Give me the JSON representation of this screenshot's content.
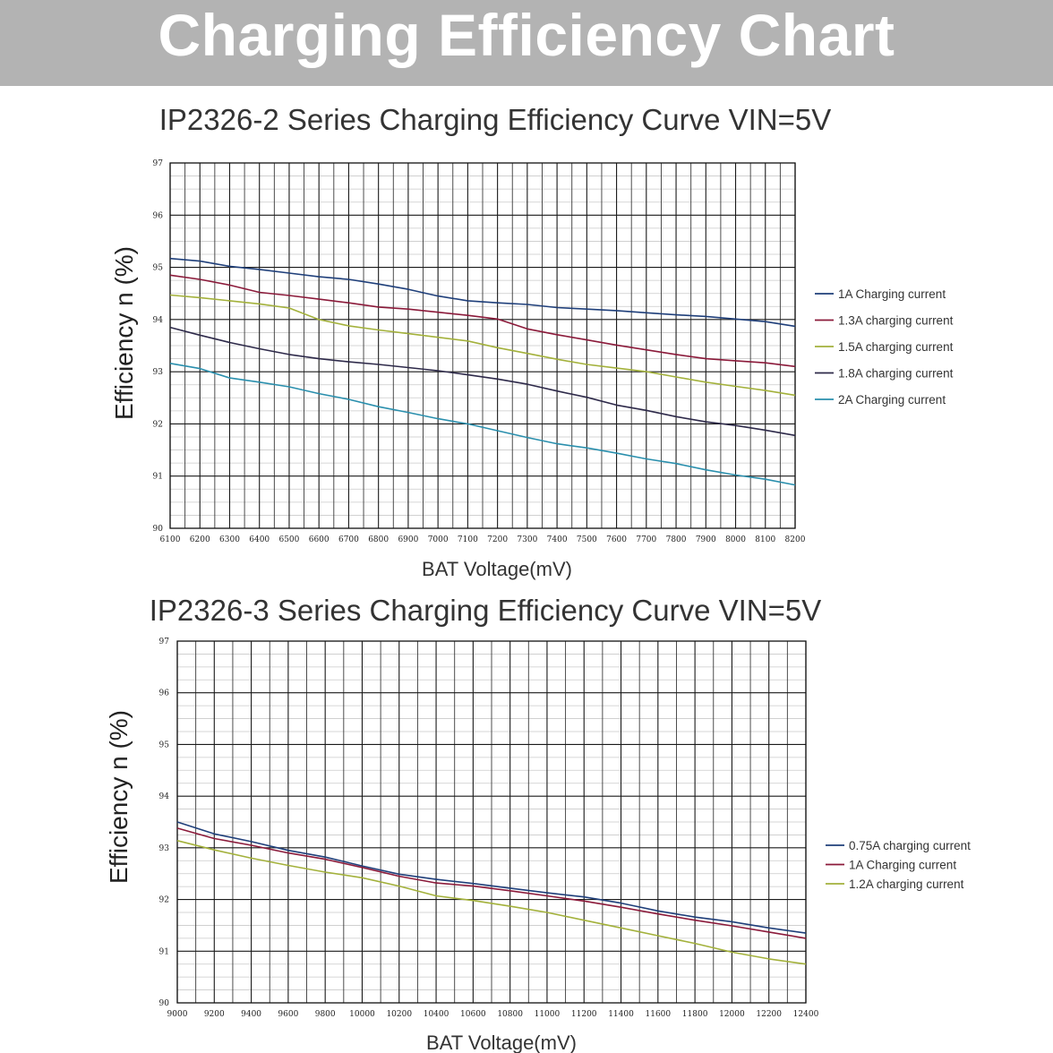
{
  "banner": {
    "title": "Charging Efficiency Chart"
  },
  "chart_data": [
    {
      "type": "line",
      "title": "IP2326-2 Series Charging Efficiency Curve VIN=5V",
      "xlabel": "BAT Voltage(mV)",
      "ylabel": "Efficiency n (%)",
      "xlim": [
        6100,
        8200
      ],
      "ylim": [
        90,
        97
      ],
      "grid": true,
      "legend_position": "right",
      "x_ticks": [
        "6100",
        "6200",
        "6300",
        "6400",
        "6500",
        "6600",
        "6700",
        "6800",
        "6900",
        "7000",
        "7100",
        "7200",
        "7300",
        "7400",
        "7500",
        "7600",
        "7700",
        "7800",
        "7900",
        "8000",
        "8100",
        "8200"
      ],
      "y_ticks": [
        "90",
        "91",
        "92",
        "93",
        "94",
        "95",
        "96",
        "97"
      ],
      "x": [
        6100,
        6200,
        6300,
        6400,
        6500,
        6600,
        6700,
        6800,
        6900,
        7000,
        7100,
        7200,
        7300,
        7400,
        7500,
        7600,
        7700,
        7800,
        7900,
        8000,
        8100,
        8200
      ],
      "series": [
        {
          "name": "1A Charging current",
          "color": "#1f3f7a",
          "values": [
            95.17,
            95.12,
            95.02,
            94.96,
            94.89,
            94.82,
            94.77,
            94.68,
            94.58,
            94.45,
            94.36,
            94.32,
            94.29,
            94.23,
            94.2,
            94.17,
            94.13,
            94.09,
            94.06,
            94.01,
            93.96,
            93.87
          ]
        },
        {
          "name": "1.3A charging current",
          "color": "#8b1a3a",
          "values": [
            94.85,
            94.77,
            94.66,
            94.52,
            94.46,
            94.39,
            94.32,
            94.24,
            94.2,
            94.14,
            94.08,
            94.01,
            93.82,
            93.71,
            93.61,
            93.51,
            93.42,
            93.33,
            93.25,
            93.21,
            93.17,
            93.1
          ]
        },
        {
          "name": "1.5A charging current",
          "color": "#a3b13b",
          "values": [
            94.47,
            94.42,
            94.36,
            94.3,
            94.22,
            94.0,
            93.88,
            93.8,
            93.73,
            93.66,
            93.59,
            93.46,
            93.35,
            93.24,
            93.14,
            93.07,
            93.0,
            92.9,
            92.8,
            92.72,
            92.64,
            92.55
          ]
        },
        {
          "name": "1.8A charging current",
          "color": "#2e2a4a",
          "values": [
            93.85,
            93.7,
            93.56,
            93.44,
            93.33,
            93.25,
            93.19,
            93.14,
            93.08,
            93.02,
            92.94,
            92.86,
            92.76,
            92.63,
            92.51,
            92.36,
            92.26,
            92.14,
            92.04,
            91.97,
            91.88,
            91.78
          ]
        },
        {
          "name": "2A Charging current",
          "color": "#2a8fad",
          "values": [
            93.16,
            93.06,
            92.88,
            92.8,
            92.71,
            92.58,
            92.47,
            92.33,
            92.22,
            92.1,
            92.0,
            91.87,
            91.74,
            91.62,
            91.54,
            91.44,
            91.33,
            91.24,
            91.12,
            91.02,
            90.94,
            90.83
          ]
        }
      ]
    },
    {
      "type": "line",
      "title": "IP2326-3 Series Charging Efficiency Curve VIN=5V",
      "xlabel": "BAT Voltage(mV)",
      "ylabel": "Efficiency n (%)",
      "xlim": [
        9000,
        12400
      ],
      "ylim": [
        90,
        97
      ],
      "grid": true,
      "legend_position": "right",
      "x_ticks": [
        "9000",
        "9200",
        "9400",
        "9600",
        "9800",
        "10000",
        "10200",
        "10400",
        "10600",
        "10800",
        "11000",
        "11200",
        "11400",
        "11600",
        "11800",
        "12000",
        "12200",
        "12400"
      ],
      "y_ticks": [
        "90",
        "91",
        "92",
        "93",
        "94",
        "95",
        "96",
        "97"
      ],
      "x": [
        9000,
        9200,
        9400,
        9600,
        9800,
        10000,
        10200,
        10400,
        10600,
        10800,
        11000,
        11200,
        11400,
        11600,
        11800,
        12000,
        12200,
        12400
      ],
      "series": [
        {
          "name": "0.75A charging current",
          "color": "#1f3f7a",
          "values": [
            93.5,
            93.27,
            93.12,
            92.95,
            92.82,
            92.65,
            92.49,
            92.39,
            92.31,
            92.22,
            92.13,
            92.05,
            91.93,
            91.78,
            91.66,
            91.57,
            91.45,
            91.35
          ]
        },
        {
          "name": "1A Charging current",
          "color": "#8b1a3a",
          "values": [
            93.38,
            93.18,
            93.05,
            92.9,
            92.78,
            92.62,
            92.45,
            92.32,
            92.26,
            92.17,
            92.07,
            91.97,
            91.85,
            91.72,
            91.6,
            91.49,
            91.37,
            91.25
          ]
        },
        {
          "name": "1.2A charging current",
          "color": "#a3b13b",
          "values": [
            93.14,
            92.96,
            92.8,
            92.66,
            92.53,
            92.42,
            92.26,
            92.07,
            91.98,
            91.87,
            91.75,
            91.6,
            91.45,
            91.3,
            91.15,
            90.98,
            90.85,
            90.75
          ]
        }
      ]
    }
  ]
}
